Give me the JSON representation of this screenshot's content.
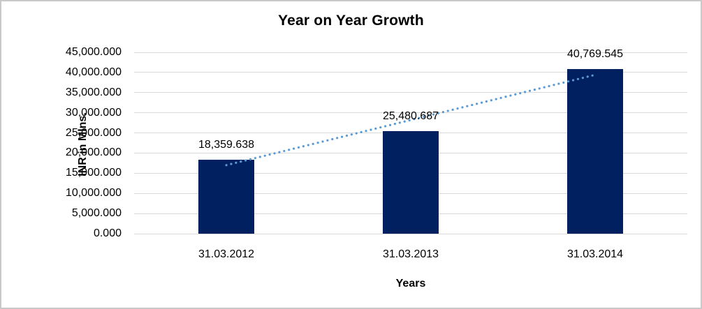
{
  "chart_data": {
    "type": "bar",
    "title": "Year on Year Growth",
    "xlabel": "Years",
    "ylabel": "INR in Mlns.",
    "categories": [
      "31.03.2012",
      "31.03.2013",
      "31.03.2014"
    ],
    "series": [
      {
        "name": "INR in Mlns.",
        "values": [
          18359.638,
          25480.687,
          40769.545
        ]
      }
    ],
    "data_labels": [
      "18,359.638",
      "25,480.687",
      "40,769.545"
    ],
    "y_ticks": [
      "0.000",
      "5,000.000",
      "10,000.000",
      "15,000.000",
      "20,000.000",
      "25,000.000",
      "30,000.000",
      "35,000.000",
      "40,000.000",
      "45,000.000"
    ],
    "ylim": [
      0,
      45000
    ],
    "y_step": 5000,
    "grid": true,
    "legend": "none",
    "colors": {
      "bar": "#002060",
      "trendline": "#5b9bd5",
      "gridline": "#d9d9d9",
      "text": "#000000",
      "frame_border": "#c9c9c9"
    },
    "trendline": {
      "type": "linear",
      "style": "dotted"
    }
  }
}
